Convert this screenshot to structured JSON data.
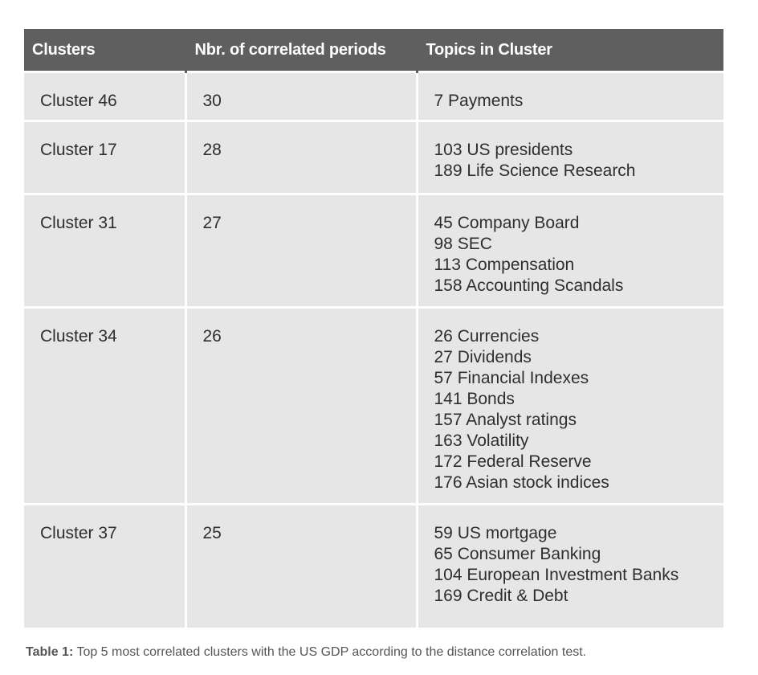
{
  "table": {
    "headers": [
      "Clusters",
      "Nbr. of correlated periods",
      "Topics in Cluster"
    ],
    "rows": [
      {
        "cluster": "Cluster 46",
        "periods": "30",
        "topics": [
          "7 Payments"
        ]
      },
      {
        "cluster": "Cluster 17",
        "periods": "28",
        "topics": [
          "103 US presidents",
          "189 Life Science Research"
        ]
      },
      {
        "cluster": "Cluster 31",
        "periods": "27",
        "topics": [
          "45 Company Board",
          "98 SEC",
          "113 Compensation",
          "158 Accounting Scandals"
        ]
      },
      {
        "cluster": "Cluster 34",
        "periods": "26",
        "topics": [
          "26 Currencies",
          "27 Dividends",
          "57 Financial Indexes",
          "141 Bonds",
          "157 Analyst ratings",
          "163 Volatility",
          "172 Federal Reserve",
          "176 Asian stock indices"
        ]
      },
      {
        "cluster": "Cluster 37",
        "periods": "25",
        "topics": [
          "59 US mortgage",
          "65 Consumer Banking",
          "104 European Investment Banks",
          "169 Credit & Debt"
        ]
      }
    ]
  },
  "caption": {
    "label": "Table 1:",
    "text": " Top 5 most correlated clusters with the US GDP according to the distance correlation test."
  },
  "colors": {
    "header_bg": "#5f5f5f",
    "cell_bg": "#e6e6e6"
  }
}
